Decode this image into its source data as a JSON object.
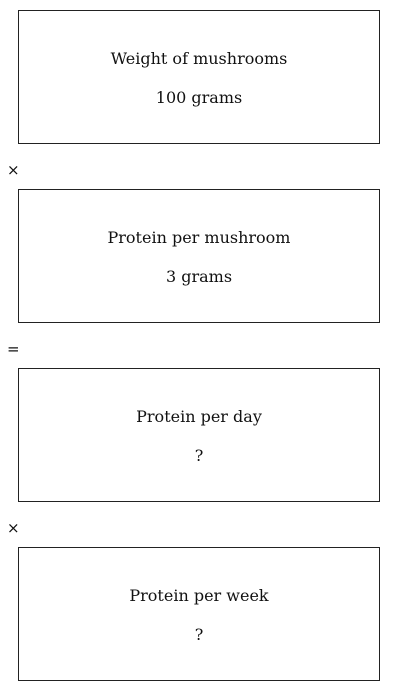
{
  "boxes": [
    {
      "label": "Weight of mushrooms",
      "value": "100 grams"
    },
    {
      "label": "Protein per mushroom",
      "value": "3 grams"
    },
    {
      "label": "Protein per day",
      "value": "?"
    },
    {
      "label": "Protein per week",
      "value": "?"
    }
  ],
  "operators": [
    "×",
    "=",
    "×"
  ]
}
